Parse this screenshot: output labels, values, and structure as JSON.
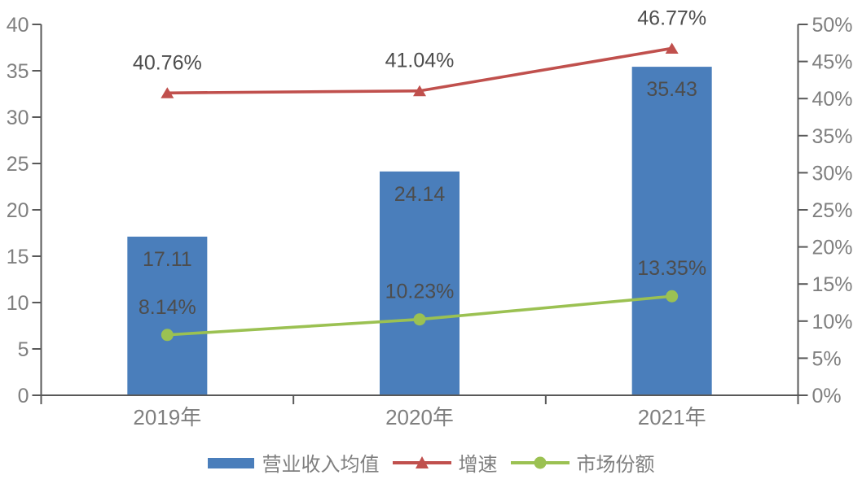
{
  "chart_data": {
    "type": "bar",
    "subtype": "combo-bar-line-dual-axis",
    "categories": [
      "2019年",
      "2020年",
      "2021年"
    ],
    "series": [
      {
        "name": "营业收入均值",
        "chart_type": "bar",
        "axis": "left",
        "color": "#4A7EBB",
        "values": [
          17.11,
          24.14,
          35.43
        ],
        "labels": [
          "17.11",
          "24.14",
          "35.43"
        ]
      },
      {
        "name": "增速",
        "chart_type": "line",
        "marker": "triangle",
        "axis": "right",
        "color": "#C0504D",
        "values": [
          40.76,
          41.04,
          46.77
        ],
        "labels": [
          "40.76%",
          "41.04%",
          "46.77%"
        ]
      },
      {
        "name": "市场份额",
        "chart_type": "line",
        "marker": "circle",
        "axis": "right",
        "color": "#9BC152",
        "values": [
          8.14,
          10.23,
          13.35
        ],
        "labels": [
          "8.14%",
          "10.23%",
          "13.35%"
        ]
      }
    ],
    "left_axis": {
      "min": 0,
      "max": 40,
      "step": 5,
      "tick_labels": [
        "0",
        "5",
        "10",
        "15",
        "20",
        "25",
        "30",
        "35",
        "40"
      ]
    },
    "right_axis": {
      "min": 0,
      "max": 50,
      "step": 5,
      "tick_labels": [
        "0%",
        "5%",
        "10%",
        "15%",
        "20%",
        "25%",
        "30%",
        "35%",
        "40%",
        "45%",
        "50%"
      ]
    },
    "grid": false,
    "legend_position": "bottom",
    "title": "",
    "xlabel": "",
    "ylabel": "",
    "styles": {
      "background": "#FFFFFF",
      "axis_line_color": "#595959",
      "tick_label_color": "#7F7F7F",
      "x_label_color": "#7F7F7F",
      "data_label_color": "#4D4D4D",
      "legend_text_color": "#7F7F7F"
    }
  }
}
